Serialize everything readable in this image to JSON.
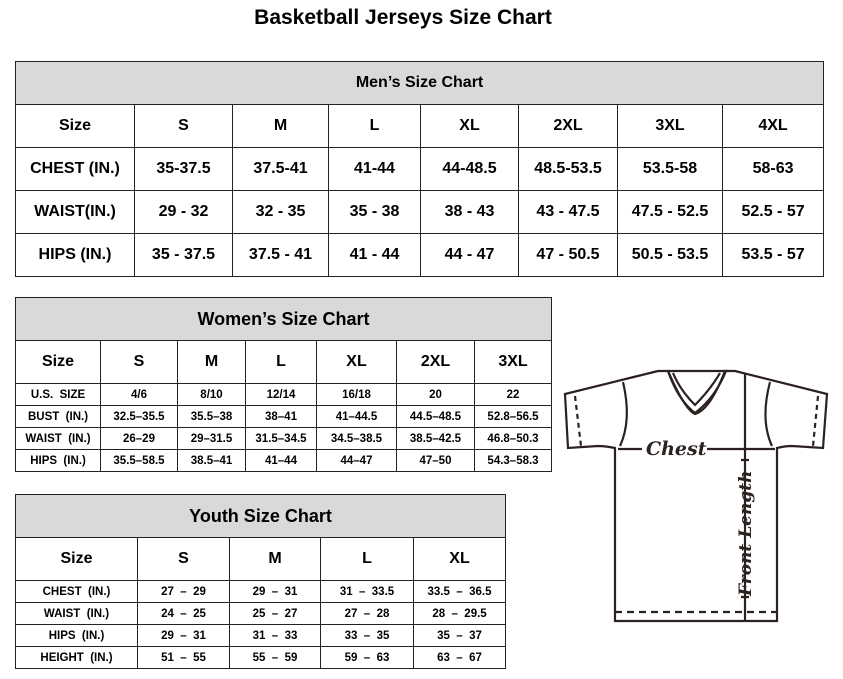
{
  "title": "Basketball Jerseys Size Chart",
  "mens": {
    "caption": "Men’s Size Chart",
    "header": [
      "Size",
      "S",
      "M",
      "L",
      "XL",
      "2XL",
      "3XL",
      "4XL"
    ],
    "rows": [
      [
        "CHEST (IN.)",
        "35-37.5",
        "37.5-41",
        "41-44",
        "44-48.5",
        "48.5-53.5",
        "53.5-58",
        "58-63"
      ],
      [
        "WAIST(IN.)",
        "29 - 32",
        "32 - 35",
        "35 - 38",
        "38 - 43",
        "43 - 47.5",
        "47.5 - 52.5",
        "52.5 - 57"
      ],
      [
        "HIPS (IN.)",
        "35 - 37.5",
        "37.5 - 41",
        "41 - 44",
        "44 - 47",
        "47 - 50.5",
        "50.5 - 53.5",
        "53.5 - 57"
      ]
    ]
  },
  "womens": {
    "caption": "Women’s Size Chart",
    "header": [
      "Size",
      "S",
      "M",
      "L",
      "XL",
      "2XL",
      "3XL"
    ],
    "rows": [
      [
        "U.S.  SIZE",
        "4/6",
        "8/10",
        "12/14",
        "16/18",
        "20",
        "22"
      ],
      [
        "BUST  (IN.)",
        "32.5–35.5",
        "35.5–38",
        "38–41",
        "41–44.5",
        "44.5–48.5",
        "52.8–56.5"
      ],
      [
        "WAIST  (IN.)",
        "26–29",
        "29–31.5",
        "31.5–34.5",
        "34.5–38.5",
        "38.5–42.5",
        "46.8–50.3"
      ],
      [
        "HIPS  (IN.)",
        "35.5–58.5",
        "38.5–41",
        "41–44",
        "44–47",
        "47–50",
        "54.3–58.3"
      ]
    ]
  },
  "youth": {
    "caption": "Youth Size Chart",
    "header": [
      "Size",
      "S",
      "M",
      "L",
      "XL"
    ],
    "rows": [
      [
        "CHEST  (IN.)",
        "27  –  29",
        "29  –  31",
        "31  –  33.5",
        "33.5  –  36.5"
      ],
      [
        "WAIST  (IN.)",
        "24  –  25",
        "25  –  27",
        "27  –  28",
        "28  –  29.5"
      ],
      [
        "HIPS  (IN.)",
        "29  –  31",
        "31  –  33",
        "33  –  35",
        "35  –  37"
      ],
      [
        "HEIGHT  (IN.)",
        "51  –  55",
        "55  –  59",
        "59  –  63",
        "63  –  67"
      ]
    ]
  },
  "diagram": {
    "chest_label": "Chest",
    "length_label": "Front Length"
  }
}
